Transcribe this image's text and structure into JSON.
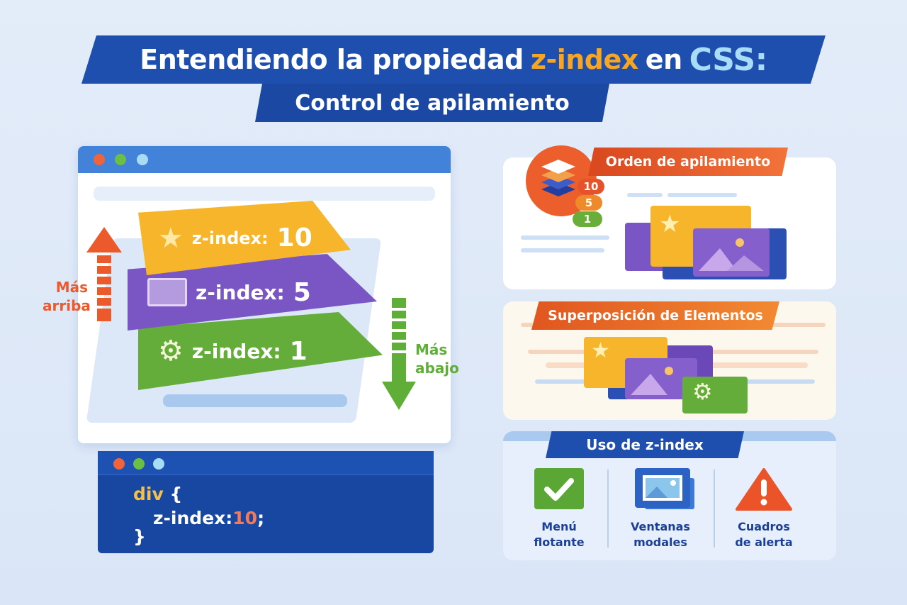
{
  "title": {
    "prefix": "Entendiendo la propiedad",
    "highlight": "z-index",
    "middle": "en",
    "css": "CSS:"
  },
  "subtitle": "Control de apilamiento",
  "stack_demo": {
    "layers": [
      {
        "label": "z-index:",
        "value": "10",
        "icon": "star-icon",
        "color": "#f7b52c"
      },
      {
        "label": "z-index:",
        "value": "5",
        "icon": "image-icon",
        "color": "#7a55c4"
      },
      {
        "label": "z-index:",
        "value": "1",
        "icon": "gear-icon",
        "color": "#65ad3a"
      }
    ],
    "up_label": [
      "Más",
      "arriba"
    ],
    "down_label": [
      "Más",
      "abajo"
    ],
    "colors": {
      "up": "#ec5a2b",
      "down": "#5fae37"
    }
  },
  "code": {
    "selector": "div",
    "open": "{",
    "property": "z-index:",
    "value": "10",
    "semicolon": ";",
    "close": "}"
  },
  "panels": {
    "order": {
      "title": "Orden de apilamiento",
      "badges": [
        "10",
        "5",
        "1"
      ]
    },
    "overlap": {
      "title": "Superposición de Elementos"
    },
    "usage": {
      "title": "Uso de z-index",
      "items": [
        {
          "icon": "checkmark-icon",
          "line1": "Menú",
          "line2": "flotante"
        },
        {
          "icon": "modal-window-icon",
          "line1": "Ventanas",
          "line2": "modales"
        },
        {
          "icon": "alert-triangle-icon",
          "line1": "Cuadros",
          "line2": "de alerta"
        }
      ]
    }
  }
}
